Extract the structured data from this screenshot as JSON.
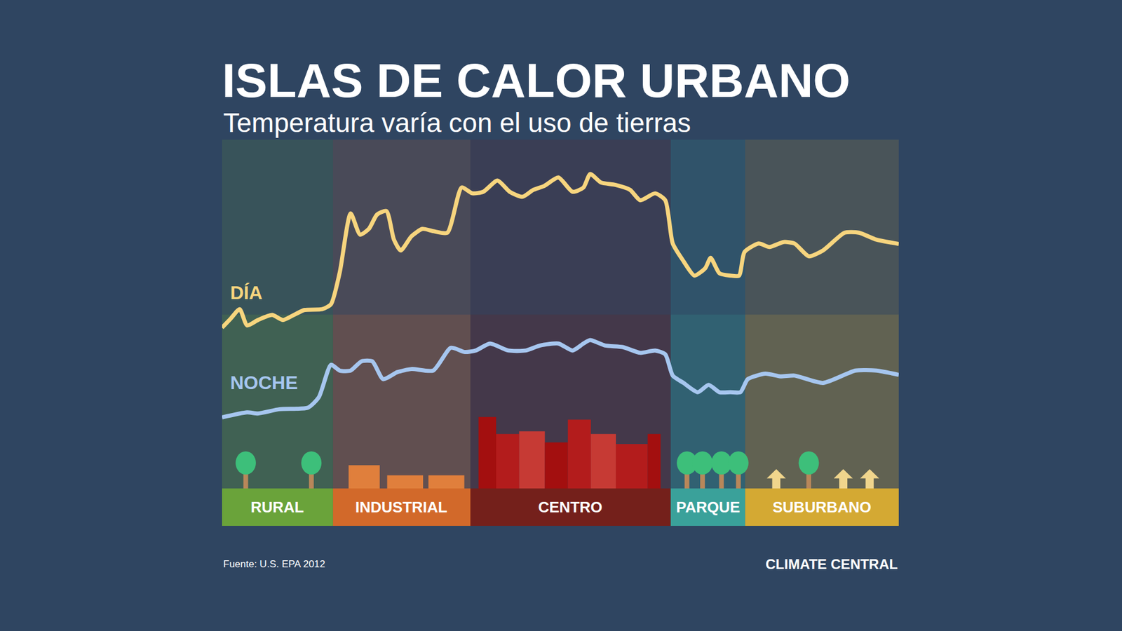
{
  "chart_data": {
    "type": "line",
    "title": "ISLAS DE CALOR URBANO",
    "subtitle": "Temperatura varía con el uso de tierras",
    "source": "Fuente: U.S. EPA 2012",
    "logo": "CLIMATE CENTRAL",
    "xlim": [
      0,
      100
    ],
    "ylim": [
      0,
      100
    ],
    "xticks": [],
    "yticks": [],
    "tick_labels": false,
    "grid": false,
    "zones": [
      {
        "label": "RURAL",
        "color": "#6aa33a",
        "from": 0,
        "to": 16.4
      },
      {
        "label": "INDUSTRIAL",
        "color": "#d2692a",
        "from": 16.4,
        "to": 36.7
      },
      {
        "label": "CENTRO",
        "color": "#74201b",
        "from": 36.7,
        "to": 66.3
      },
      {
        "label": "PARQUE",
        "color": "#3aa19a",
        "from": 66.3,
        "to": 77.3
      },
      {
        "label": "SUBURBANO",
        "color": "#d4a933",
        "from": 77.3,
        "to": 100
      }
    ],
    "series": [
      {
        "name": "DÍA",
        "color": "#f7d57e",
        "x": [
          0,
          1.3,
          2.6,
          3.7,
          5.3,
          7.4,
          9.0,
          10.6,
          12.2,
          14.8,
          16.1,
          17.4,
          19.0,
          20.4,
          21.7,
          22.9,
          24.3,
          25.4,
          26.4,
          28.0,
          29.6,
          31.2,
          33.3,
          35.4,
          37.0,
          38.6,
          40.7,
          42.5,
          44.4,
          46.0,
          47.6,
          49.7,
          51.8,
          53.4,
          54.4,
          56.0,
          58.1,
          60.3,
          61.8,
          64.0,
          65.5,
          66.6,
          68.2,
          69.8,
          71.4,
          72.2,
          73.5,
          75.1,
          76.4,
          77.2,
          79.3,
          80.9,
          83.0,
          84.6,
          86.7,
          88.8,
          92.0,
          94.1,
          96.7,
          100
        ],
        "values": [
          51.3,
          53.7,
          56.1,
          51.9,
          53.3,
          54.6,
          53.3,
          54.6,
          55.9,
          56.1,
          57.4,
          65.7,
          80.9,
          75.4,
          76.9,
          80.6,
          81.5,
          74.1,
          71.3,
          75.0,
          76.9,
          76.3,
          75.9,
          87.6,
          86.1,
          86.5,
          89.4,
          86.5,
          85.2,
          87.0,
          88.0,
          90.2,
          86.5,
          87.6,
          91.1,
          88.9,
          88.3,
          87.0,
          84.3,
          86.1,
          84.3,
          73.1,
          68.5,
          64.8,
          66.7,
          69.4,
          65.4,
          64.8,
          64.8,
          70.9,
          73.1,
          72.2,
          73.5,
          73.1,
          69.8,
          71.3,
          75.9,
          75.9,
          74.1,
          73.0
        ]
      },
      {
        "name": "NOCHE",
        "color": "#a6c6ef",
        "x": [
          0,
          3.7,
          5.3,
          8.5,
          12.7,
          14.3,
          16.1,
          17.4,
          19.0,
          20.6,
          22.2,
          23.8,
          25.9,
          28.0,
          31.2,
          33.8,
          35.9,
          37.5,
          39.6,
          42.3,
          44.9,
          47.0,
          49.7,
          51.8,
          53.4,
          54.4,
          56.6,
          59.2,
          61.8,
          64.0,
          65.5,
          66.6,
          68.2,
          70.3,
          71.9,
          73.5,
          75.1,
          76.6,
          77.7,
          80.3,
          82.5,
          84.6,
          88.8,
          93.6,
          96.7,
          100
        ],
        "values": [
          28.1,
          29.4,
          29.1,
          30.2,
          30.6,
          33.3,
          41.7,
          40.2,
          40.2,
          42.6,
          42.6,
          38.0,
          39.8,
          40.6,
          40.2,
          46.1,
          45.0,
          45.4,
          47.2,
          45.4,
          45.4,
          46.7,
          47.2,
          45.4,
          47.2,
          48.1,
          46.7,
          46.3,
          44.8,
          45.4,
          44.4,
          38.9,
          37.0,
          34.6,
          36.5,
          34.6,
          34.6,
          34.6,
          38.0,
          39.4,
          38.7,
          38.9,
          37.0,
          40.2,
          40.2,
          39.1
        ]
      }
    ]
  }
}
